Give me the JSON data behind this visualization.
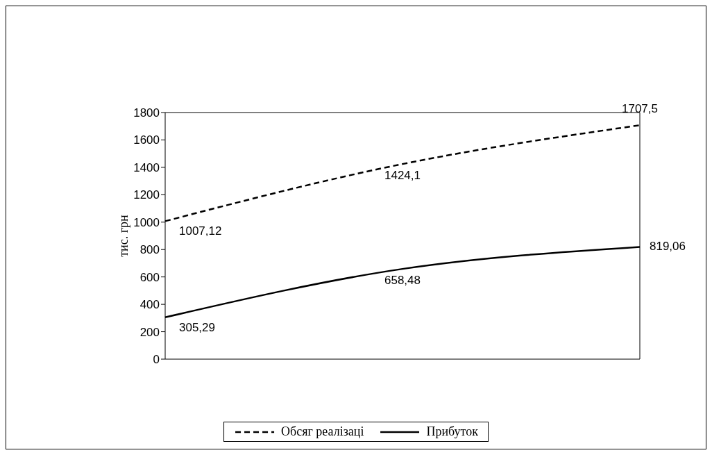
{
  "chart_data": {
    "type": "line",
    "ylabel": "тис. грн",
    "categories": [
      null,
      null,
      null
    ],
    "ylim": [
      0,
      1800
    ],
    "yticks": [
      0,
      200,
      400,
      600,
      800,
      1000,
      1200,
      1400,
      1600,
      1800
    ],
    "grid": false,
    "legend": "bottom",
    "marker": "none",
    "series": [
      {
        "name": "Обсяг реалізаці",
        "color": "#000000",
        "line_style": "dashed",
        "values": [
          1007.12,
          1424.1,
          1707.5
        ],
        "value_labels": [
          "1007,12",
          "1424,1",
          "1707,5"
        ]
      },
      {
        "name": "Прибуток",
        "color": "#000000",
        "line_style": "solid",
        "values": [
          305.29,
          658.48,
          819.06
        ],
        "value_labels": [
          "305,29",
          "658,48",
          "819,06"
        ]
      }
    ]
  }
}
